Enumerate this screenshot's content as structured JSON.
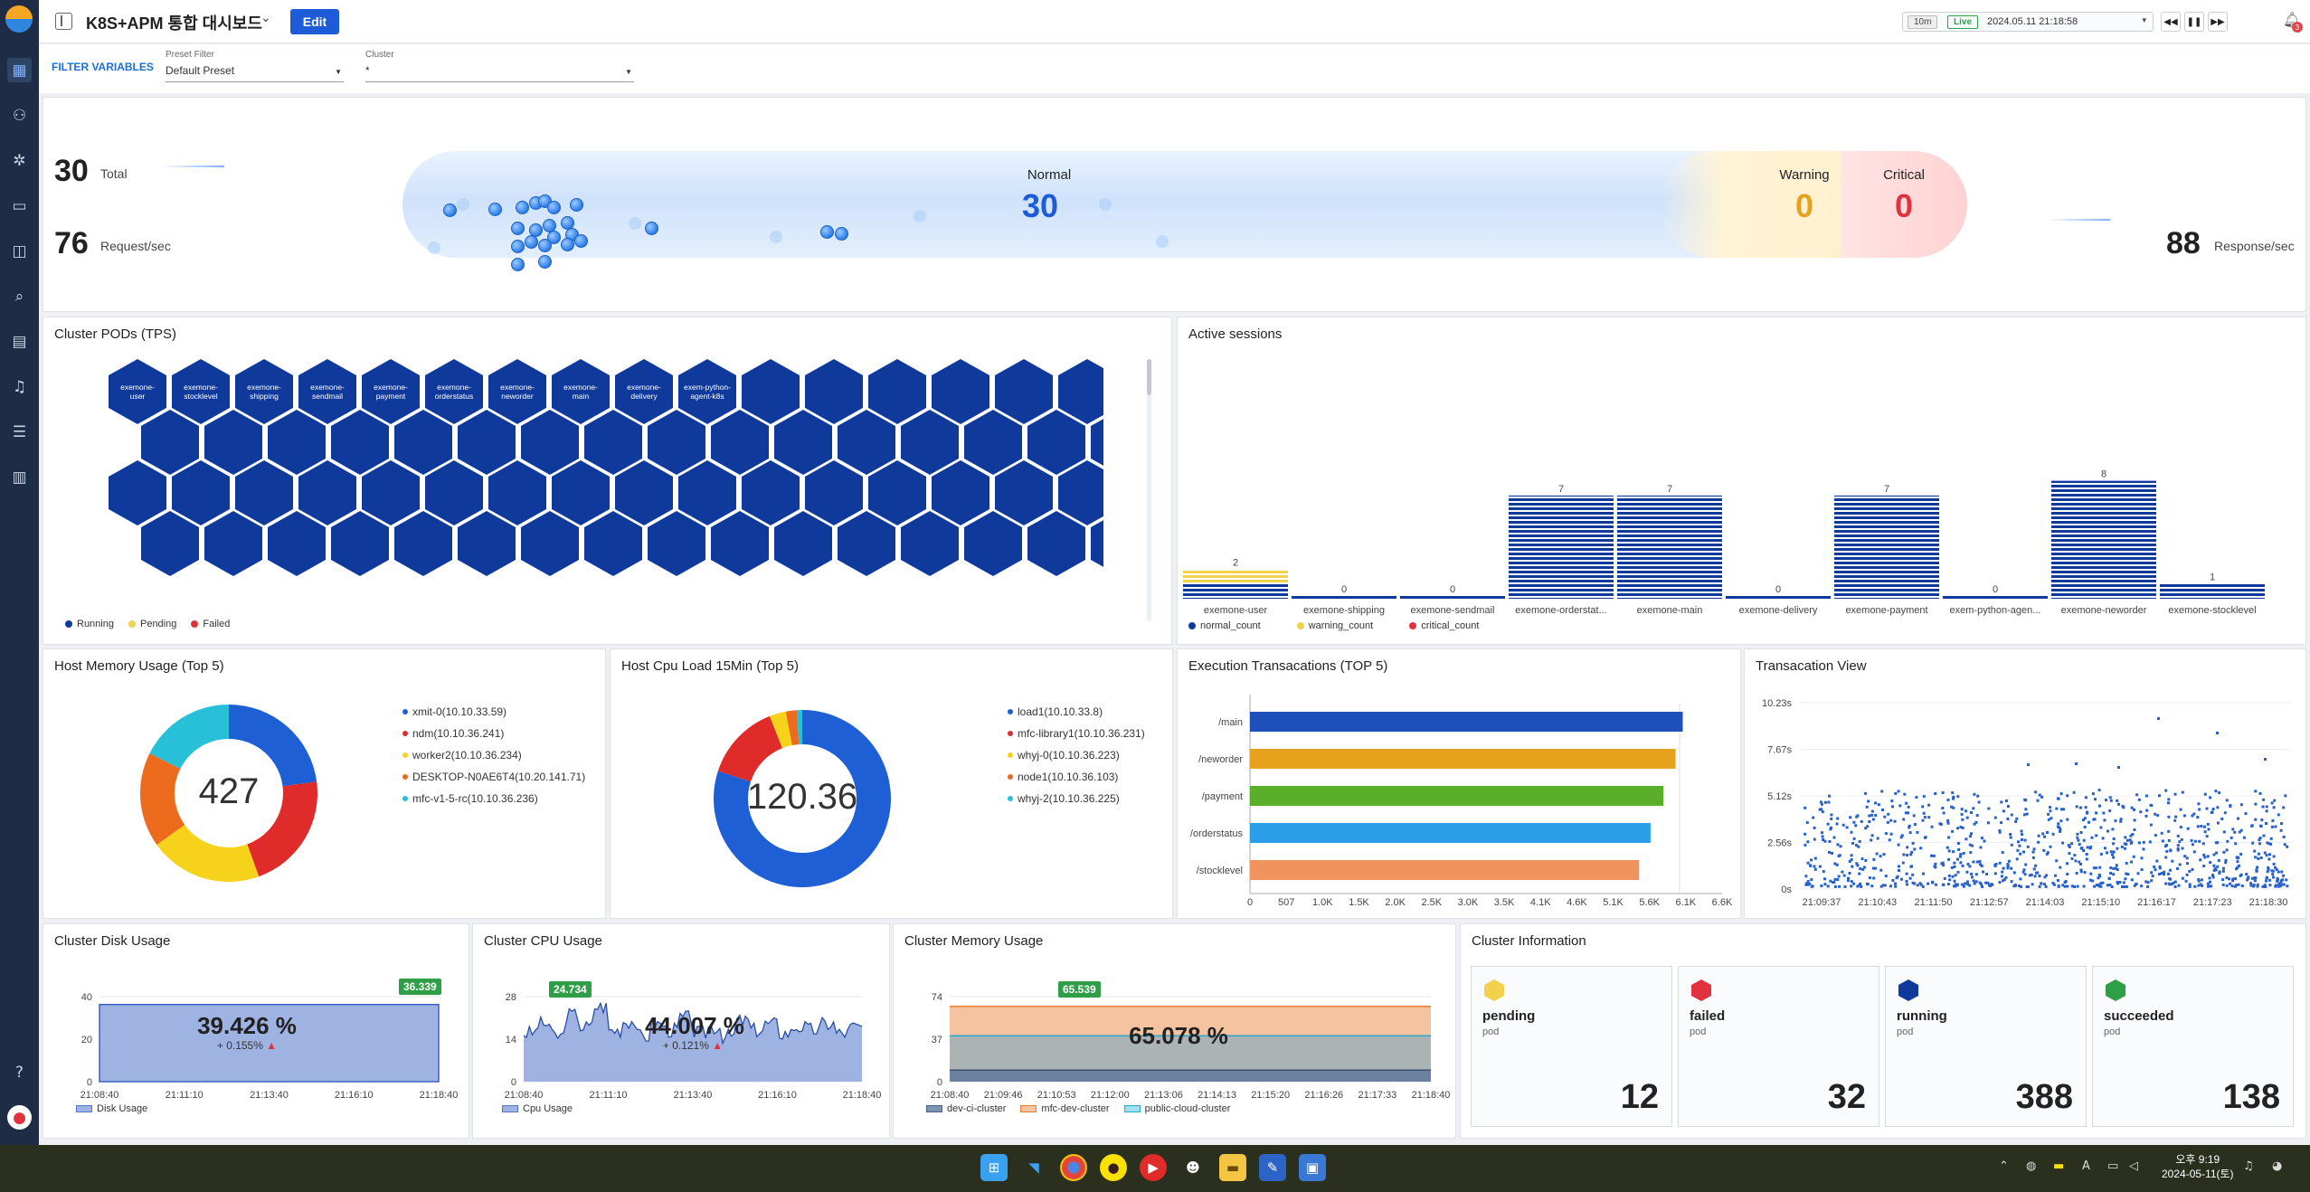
{
  "app": {
    "title": "K8S+APM 통합 대시보드",
    "edit_label": "Edit"
  },
  "time": {
    "range": "10m",
    "live": "Live",
    "datetime": "2024.05.11 21:18:58",
    "notifications": "3"
  },
  "filters": {
    "label": "FILTER VARIABLES",
    "preset_caption": "Preset Filter",
    "preset_value": "Default Preset",
    "cluster_caption": "Cluster",
    "cluster_value": "*"
  },
  "summary": {
    "total": "30",
    "total_label": "Total",
    "rps": "76",
    "rps_label": "Request/sec",
    "normal_label": "Normal",
    "normal": "30",
    "warning_label": "Warning",
    "warning": "0",
    "critical_label": "Critical",
    "critical": "0",
    "response": "88",
    "response_label": "Response/sec"
  },
  "pods": {
    "title": "Cluster PODs (TPS)",
    "labels": [
      "exemone-user",
      "exemone-stocklevel",
      "exemone-shipping",
      "exemone-sendmail",
      "exemone-payment",
      "exemone-orderstatus",
      "exemone-neworder",
      "exemone-main",
      "exemone-delivery",
      "exem-python-agent-k8s"
    ],
    "legend": [
      "Running",
      "Pending",
      "Failed"
    ],
    "colors": {
      "running": "#0f3a9c",
      "pending": "#f2d14b",
      "failed": "#e0333f"
    }
  },
  "sessions": {
    "title": "Active sessions",
    "categories": [
      "exemone-user",
      "exemone-shipping",
      "exemone-sendmail",
      "exemone-orderstat...",
      "exemone-main",
      "exemone-delivery",
      "exemone-payment",
      "exem-python-agen...",
      "exemone-neworder",
      "exemone-stocklevel"
    ],
    "values": [
      2,
      0,
      0,
      7,
      7,
      0,
      7,
      0,
      8,
      1
    ],
    "legend": [
      "normal_count",
      "warning_count",
      "critical_count"
    ]
  },
  "host_memory": {
    "title": "Host Memory Usage (Top 5)",
    "center": "427",
    "legend": [
      "xmit-0(10.10.33.59)",
      "ndm(10.10.36.241)",
      "worker2(10.10.36.234)",
      "DESKTOP-N0AE6T4(10.20.141.71)",
      "mfc-v1-5-rc(10.10.36.236)"
    ]
  },
  "host_cpu": {
    "title": "Host Cpu Load 15Min (Top 5)",
    "center": "120.36",
    "legend": [
      "load1(10.10.33.8)",
      "mfc-library1(10.10.36.231)",
      "whyj-0(10.10.36.223)",
      "node1(10.10.36.103)",
      "whyj-2(10.10.36.225)"
    ]
  },
  "exec_tx": {
    "title": "Execution Transacations (TOP 5)",
    "x_ticks": [
      "0",
      "507",
      "1.0K",
      "1.5K",
      "2.0K",
      "2.5K",
      "3.0K",
      "3.5K",
      "4.1K",
      "4.6K",
      "5.1K",
      "5.6K",
      "6.1K",
      "6.6K"
    ]
  },
  "tx_view": {
    "title": "Transacation View",
    "y_ticks": [
      "10.23s",
      "7.67s",
      "5.12s",
      "2.56s",
      "0s"
    ],
    "x_ticks": [
      "21:09:37",
      "21:10:43",
      "21:11:50",
      "21:12:57",
      "21:14:03",
      "21:15:10",
      "21:16:17",
      "21:17:23",
      "21:18:30"
    ]
  },
  "disk": {
    "title": "Cluster Disk Usage",
    "value": "39.426 %",
    "delta": "+ 0.155%",
    "peak": "36.339",
    "y_ticks": [
      "40",
      "20",
      "0"
    ],
    "x_ticks": [
      "21:08:40",
      "21:11:10",
      "21:13:40",
      "21:16:10",
      "21:18:40"
    ],
    "legend": "Disk Usage"
  },
  "cpu": {
    "title": "Cluster CPU Usage",
    "value": "44.007 %",
    "delta": "+ 0.121%",
    "peak": "24.734",
    "y_ticks": [
      "28",
      "14",
      "0"
    ],
    "x_ticks": [
      "21:08:40",
      "21:11:10",
      "21:13:40",
      "21:16:10",
      "21:18:40"
    ],
    "legend": "Cpu Usage"
  },
  "memory": {
    "title": "Cluster Memory Usage",
    "value": "65.078 %",
    "peak": "65.539",
    "y_ticks": [
      "74",
      "37",
      "0"
    ],
    "x_ticks": [
      "21:08:40",
      "21:09:46",
      "21:10:53",
      "21:12:00",
      "21:13:06",
      "21:14:13",
      "21:15:20",
      "21:16:26",
      "21:17:33",
      "21:18:40"
    ],
    "legend": [
      "dev-ci-cluster",
      "mfc-dev-cluster",
      "public-cloud-cluster"
    ]
  },
  "cluster_info": {
    "title": "Cluster Information",
    "cards": [
      {
        "name": "pending",
        "sub": "pod",
        "value": "12",
        "color": "#f2d14b"
      },
      {
        "name": "failed",
        "sub": "pod",
        "value": "32",
        "color": "#e0333f"
      },
      {
        "name": "running",
        "sub": "pod",
        "value": "388",
        "color": "#0f3a9c"
      },
      {
        "name": "succeeded",
        "sub": "pod",
        "value": "138",
        "color": "#2e9e47"
      }
    ]
  },
  "taskbar": {
    "ampm_time": "오후 9:19",
    "date": "2024-05-11(토)"
  },
  "chart_data": [
    {
      "type": "bar",
      "title": "Active sessions",
      "categories": [
        "exemone-user",
        "exemone-shipping",
        "exemone-sendmail",
        "exemone-orderstat...",
        "exemone-main",
        "exemone-delivery",
        "exemone-payment",
        "exem-python-agen...",
        "exemone-neworder",
        "exemone-stocklevel"
      ],
      "series": [
        {
          "name": "normal_count",
          "values": [
            1,
            0,
            0,
            7,
            7,
            0,
            7,
            0,
            8,
            1
          ]
        },
        {
          "name": "warning_count",
          "values": [
            1,
            0,
            0,
            0,
            0,
            0,
            0,
            0,
            0,
            0
          ]
        },
        {
          "name": "critical_count",
          "values": [
            0,
            0,
            0,
            0,
            0,
            0,
            0,
            0,
            0,
            0
          ]
        }
      ],
      "data_labels": [
        2,
        0,
        0,
        7,
        7,
        0,
        7,
        0,
        8,
        1
      ]
    },
    {
      "type": "pie",
      "title": "Host Memory Usage (Top 5)",
      "categories": [
        "xmit-0(10.10.33.59)",
        "ndm(10.10.36.241)",
        "worker2(10.10.36.234)",
        "DESKTOP-N0AE6T4(10.20.141.71)",
        "mfc-v1-5-rc(10.10.36.236)"
      ],
      "values": [
        98,
        92,
        88,
        74,
        75
      ],
      "colors": [
        "#1f5fd6",
        "#e02b2b",
        "#f7d21a",
        "#ec6b1c",
        "#27c0d8"
      ]
    },
    {
      "type": "pie",
      "title": "Host Cpu Load 15Min (Top 5)",
      "categories": [
        "load1(10.10.33.8)",
        "mfc-library1(10.10.36.231)",
        "whyj-0(10.10.36.223)",
        "node1(10.10.36.103)",
        "whyj-2(10.10.36.225)"
      ],
      "values": [
        96.3,
        16.8,
        3.6,
        2.4,
        1.2
      ],
      "colors": [
        "#1f5fd6",
        "#e02b2b",
        "#f7d21a",
        "#ec6b1c",
        "#27c0d8"
      ]
    },
    {
      "type": "bar",
      "title": "Execution Transacations (TOP 5)",
      "orientation": "horizontal",
      "categories": [
        "/main",
        "/neworder",
        "/payment",
        "/orderstatus",
        "/stocklevel"
      ],
      "values": [
        6050,
        5950,
        5780,
        5600,
        5440
      ],
      "xlim": [
        0,
        6600
      ],
      "colors": [
        "#1f4fb8",
        "#e6a21c",
        "#5aae2a",
        "#2a9ee6",
        "#f1935c"
      ]
    },
    {
      "type": "scatter",
      "title": "Transacation View",
      "ylim": [
        0,
        10.23
      ],
      "y_unit": "s",
      "x_range": [
        "21:09:37",
        "21:18:30"
      ]
    },
    {
      "type": "area",
      "title": "Cluster Disk Usage",
      "ylim": [
        0,
        40
      ],
      "series": [
        {
          "name": "Disk Usage",
          "values": [
            36.3,
            36.3,
            36.3,
            36.3,
            36.3,
            36.3,
            36.3,
            36.3,
            36.3,
            36.3
          ]
        }
      ]
    },
    {
      "type": "line",
      "title": "Cluster CPU Usage",
      "ylim": [
        0,
        28
      ],
      "series": [
        {
          "name": "Cpu Usage",
          "values": [
            16,
            19,
            15,
            22,
            18,
            24.7,
            17,
            20,
            15,
            19,
            17,
            21,
            16,
            18,
            15,
            20,
            17,
            19,
            16,
            18,
            17,
            19,
            16,
            18
          ]
        }
      ]
    },
    {
      "type": "area",
      "title": "Cluster Memory Usage",
      "ylim": [
        0,
        74
      ],
      "series": [
        {
          "name": "dev-ci-cluster",
          "values": [
            10,
            10,
            10,
            10,
            10,
            10,
            10,
            10,
            10,
            10
          ]
        },
        {
          "name": "mfc-dev-cluster",
          "values": [
            65.5,
            65.5,
            65.5,
            65.5,
            65.5,
            65.5,
            65.5,
            65.5,
            65.5,
            65.5
          ]
        },
        {
          "name": "public-cloud-cluster",
          "values": [
            40,
            40,
            40,
            40,
            40,
            40,
            40,
            40,
            40,
            40
          ]
        }
      ]
    }
  ]
}
